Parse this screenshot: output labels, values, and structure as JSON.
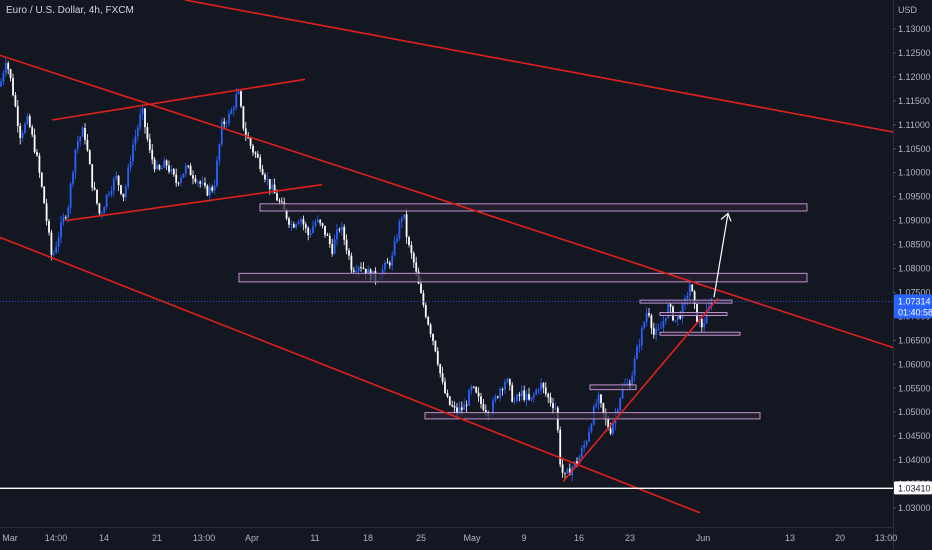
{
  "chart_title": "Euro / U.S. Dollar, 4h, FXCM",
  "colors": {
    "background": "#131722",
    "bull": "#2962ff",
    "bear": "#ffffff",
    "trendline": "#e0201b",
    "zone_border": "#d1a0e0",
    "zone_fill": "#2a2333",
    "price_tag_bg": "#2962ff",
    "level_tag_bg": "#ffffff"
  },
  "chart_data": {
    "type": "candlestick",
    "symbol": "EURUSD",
    "timeframe": "4h",
    "source": "FXCM",
    "currency_label": "USD",
    "ylim": [
      1.0265,
      1.134
    ],
    "y_ticks": [
      "1.13000",
      "1.12500",
      "1.12000",
      "1.11500",
      "1.11000",
      "1.10500",
      "1.10000",
      "1.09500",
      "1.09000",
      "1.08500",
      "1.08000",
      "1.07500",
      "1.07000",
      "1.06500",
      "1.06000",
      "1.05500",
      "1.05000",
      "1.04500",
      "1.04000",
      "1.03500",
      "1.03000"
    ],
    "x_ticks": [
      "Mar",
      "14:00",
      "14",
      "21",
      "13:00",
      "Apr",
      "11",
      "18",
      "25",
      "May",
      "9",
      "16",
      "23",
      "Jun",
      "13",
      "20",
      "13:00"
    ],
    "price_tag": {
      "value": "1.07314",
      "countdown": "01:40:58"
    },
    "level_tag": {
      "value": "1.03410"
    },
    "horizontal_level": 1.0341,
    "price_path": [
      [
        0,
        1.118
      ],
      [
        6,
        1.124
      ],
      [
        12,
        1.118
      ],
      [
        20,
        1.108
      ],
      [
        28,
        1.111
      ],
      [
        36,
        1.104
      ],
      [
        44,
        1.094
      ],
      [
        52,
        1.082
      ],
      [
        60,
        1.088
      ],
      [
        68,
        1.093
      ],
      [
        76,
        1.106
      ],
      [
        84,
        1.109
      ],
      [
        92,
        1.098
      ],
      [
        100,
        1.091
      ],
      [
        108,
        1.096
      ],
      [
        116,
        1.099
      ],
      [
        124,
        1.095
      ],
      [
        132,
        1.105
      ],
      [
        142,
        1.113
      ],
      [
        150,
        1.104
      ],
      [
        158,
        1.1
      ],
      [
        166,
        1.102
      ],
      [
        176,
        1.098
      ],
      [
        186,
        1.101
      ],
      [
        196,
        1.099
      ],
      [
        206,
        1.096
      ],
      [
        214,
        1.097
      ],
      [
        222,
        1.11
      ],
      [
        230,
        1.112
      ],
      [
        238,
        1.117
      ],
      [
        244,
        1.109
      ],
      [
        252,
        1.105
      ],
      [
        260,
        1.102
      ],
      [
        268,
        1.098
      ],
      [
        276,
        1.095
      ],
      [
        284,
        1.092
      ],
      [
        292,
        1.089
      ],
      [
        300,
        1.091
      ],
      [
        308,
        1.087
      ],
      [
        316,
        1.09
      ],
      [
        324,
        1.088
      ],
      [
        332,
        1.084
      ],
      [
        340,
        1.089
      ],
      [
        346,
        1.085
      ],
      [
        352,
        1.08
      ],
      [
        360,
        1.081
      ],
      [
        368,
        1.079
      ],
      [
        376,
        1.078
      ],
      [
        384,
        1.08
      ],
      [
        392,
        1.082
      ],
      [
        398,
        1.088
      ],
      [
        403,
        1.092
      ],
      [
        408,
        1.085
      ],
      [
        414,
        1.081
      ],
      [
        420,
        1.075
      ],
      [
        428,
        1.069
      ],
      [
        436,
        1.063
      ],
      [
        442,
        1.056
      ],
      [
        448,
        1.052
      ],
      [
        456,
        1.05
      ],
      [
        464,
        1.051
      ],
      [
        472,
        1.055
      ],
      [
        480,
        1.052
      ],
      [
        490,
        1.05
      ],
      [
        500,
        1.055
      ],
      [
        506,
        1.057
      ],
      [
        514,
        1.052
      ],
      [
        522,
        1.054
      ],
      [
        530,
        1.052
      ],
      [
        540,
        1.056
      ],
      [
        548,
        1.053
      ],
      [
        556,
        1.051
      ],
      [
        560,
        1.04
      ],
      [
        564,
        1.036
      ],
      [
        570,
        1.038
      ],
      [
        578,
        1.04
      ],
      [
        586,
        1.044
      ],
      [
        592,
        1.049
      ],
      [
        598,
        1.053
      ],
      [
        604,
        1.049
      ],
      [
        610,
        1.046
      ],
      [
        616,
        1.05
      ],
      [
        622,
        1.055
      ],
      [
        630,
        1.056
      ],
      [
        636,
        1.062
      ],
      [
        642,
        1.067
      ],
      [
        648,
        1.072
      ],
      [
        654,
        1.066
      ],
      [
        660,
        1.067
      ],
      [
        668,
        1.072
      ],
      [
        676,
        1.069
      ],
      [
        684,
        1.072
      ],
      [
        690,
        1.077
      ],
      [
        696,
        1.07
      ],
      [
        702,
        1.068
      ],
      [
        708,
        1.071
      ],
      [
        712,
        1.0731
      ]
    ],
    "trendlines": [
      {
        "from": [
          185,
          0.0
        ],
        "to": [
          893,
          1.1085
        ]
      },
      {
        "from": [
          0,
          1.1245
        ],
        "to": [
          893,
          1.0635
        ]
      },
      {
        "from": [
          0,
          1.0865
        ],
        "to": [
          700,
          1.029
        ]
      },
      {
        "from": [
          52,
          1.111
        ],
        "to": [
          305,
          1.1195
        ]
      },
      {
        "from": [
          66,
          1.09
        ],
        "to": [
          322,
          1.0975
        ]
      },
      {
        "from": [
          563,
          1.0355
        ],
        "to": [
          718,
          1.0738
        ]
      }
    ],
    "zones": [
      {
        "x1": 260,
        "x2": 807,
        "y1": 1.0935,
        "y2": 1.092
      },
      {
        "x1": 239,
        "x2": 807,
        "y1": 1.079,
        "y2": 1.0772
      },
      {
        "x1": 425,
        "x2": 760,
        "y1": 1.0499,
        "y2": 1.0486
      },
      {
        "x1": 590,
        "x2": 636,
        "y1": 1.0557,
        "y2": 1.0547
      },
      {
        "x1": 640,
        "x2": 732,
        "y1": 1.0734,
        "y2": 1.0729
      },
      {
        "x1": 660,
        "x2": 727,
        "y1": 1.0708,
        "y2": 1.0703
      },
      {
        "x1": 660,
        "x2": 740,
        "y1": 1.0667,
        "y2": 1.0662
      }
    ],
    "projection_arrow": {
      "from": [
        714,
        1.074
      ],
      "to": [
        728,
        1.0915
      ]
    },
    "grid": false
  }
}
